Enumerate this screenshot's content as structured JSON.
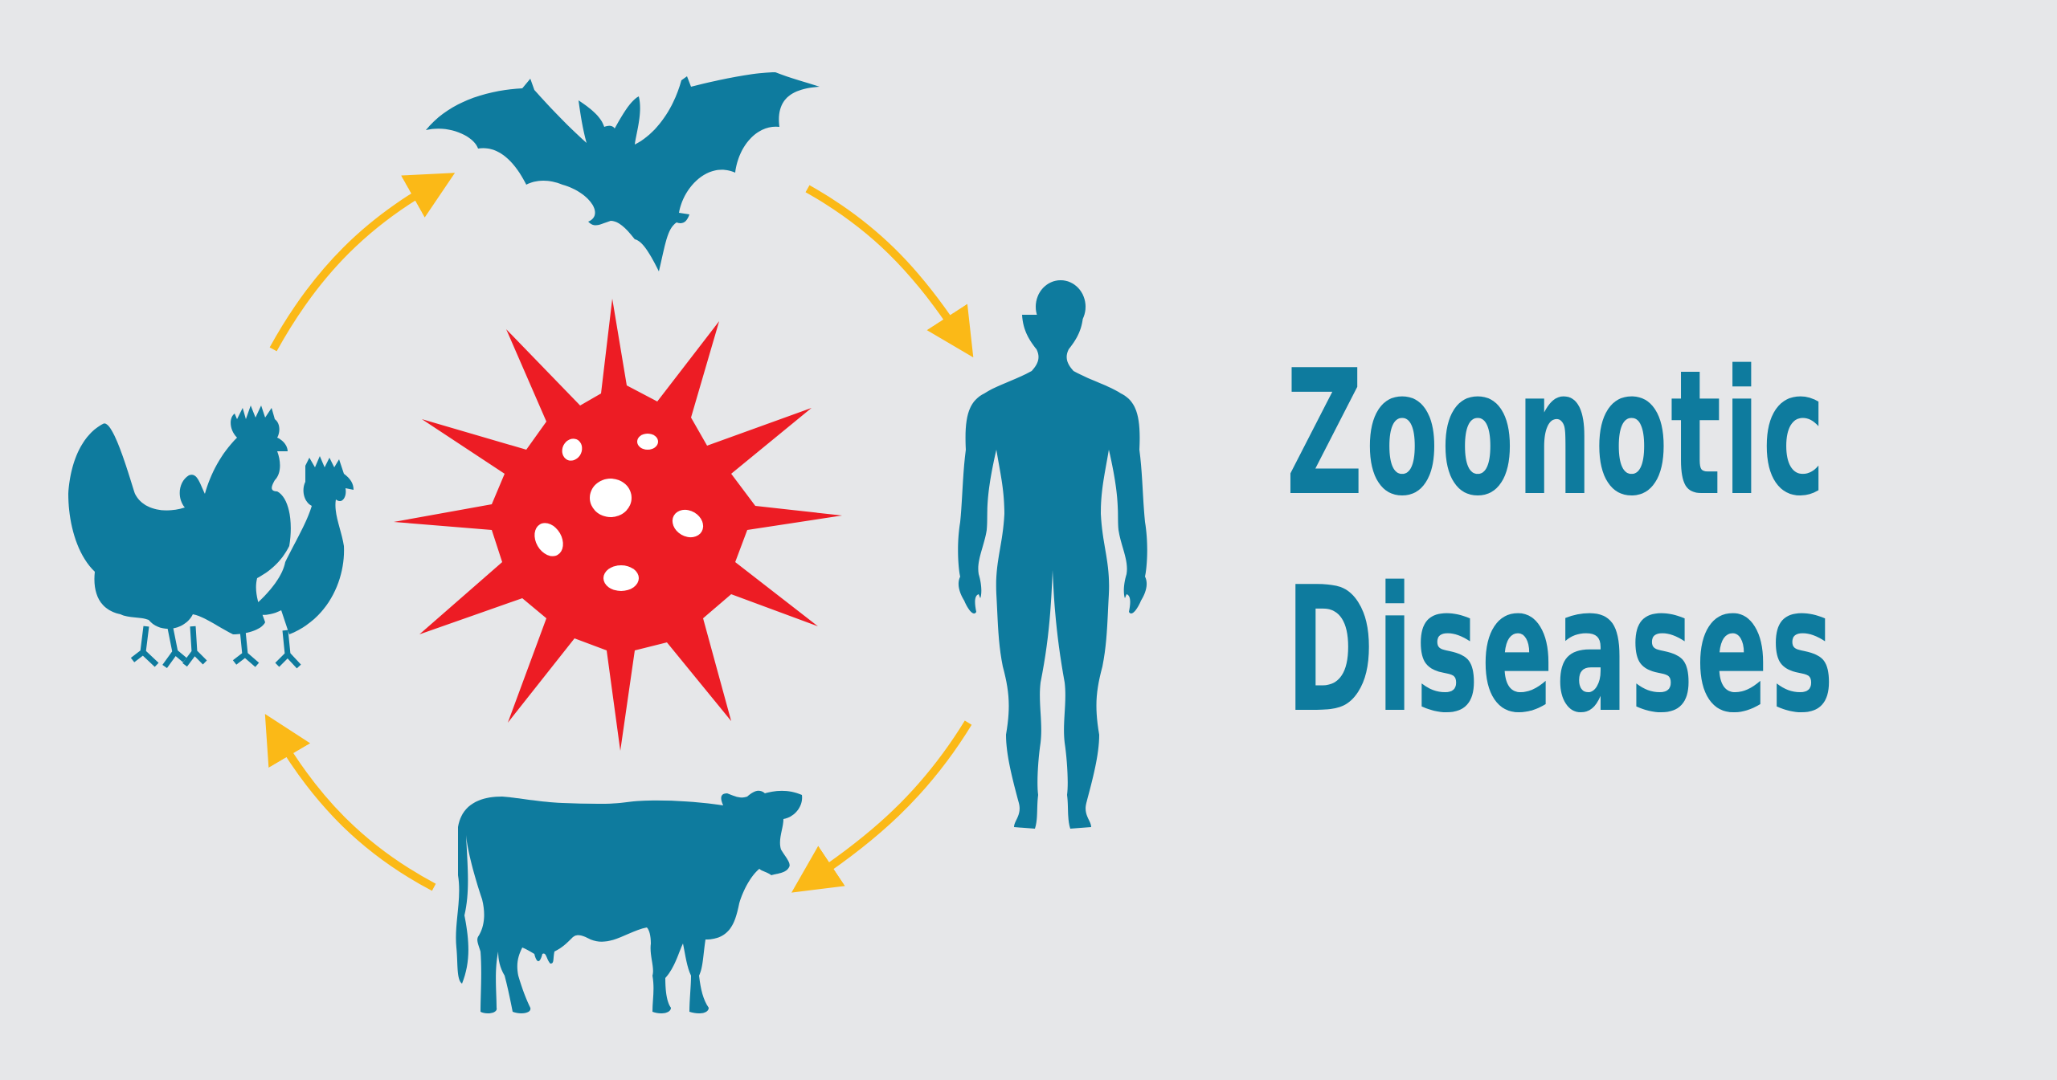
{
  "title": {
    "line1": "Zoonotic",
    "line2": "Diseases"
  },
  "colors": {
    "background": "#e6e7e9",
    "animal": "#0e7b9e",
    "virus": "#ed1c24",
    "arrow": "#fbb917",
    "virus_spots": "#ffffff"
  },
  "icons": [
    "bat-icon",
    "human-icon",
    "cow-icon",
    "chicken-icon",
    "virus-icon",
    "cycle-arrow-icon"
  ]
}
